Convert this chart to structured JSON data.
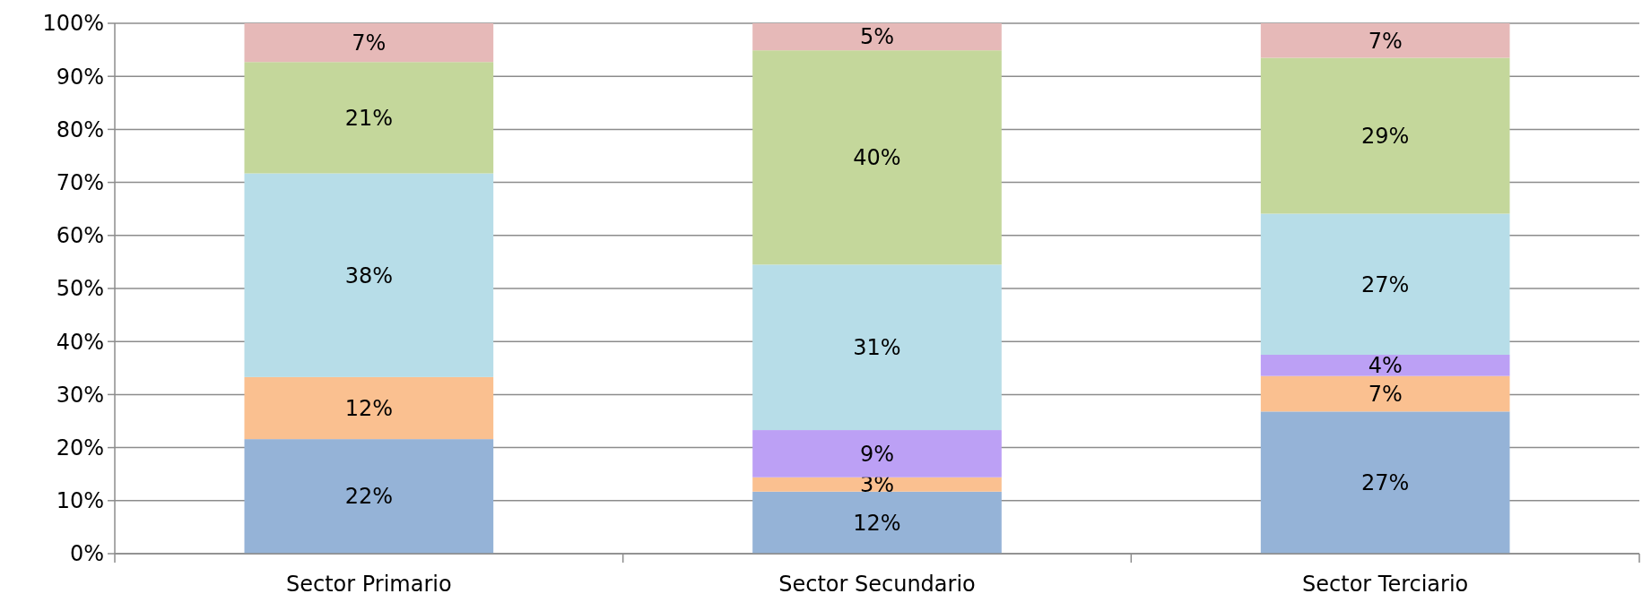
{
  "chart_data": {
    "type": "bar",
    "stacked": true,
    "categories": [
      "Sector Primario",
      "Sector Secundario",
      "Sector Terciario"
    ],
    "series": [
      {
        "color": "#95b3d7",
        "values": [
          21.6,
          11.7,
          26.8
        ],
        "value_labels": [
          "22%",
          "12%",
          "27%"
        ]
      },
      {
        "color": "#fac090",
        "values": [
          11.7,
          2.7,
          6.7
        ],
        "value_labels": [
          "12%",
          "3%",
          "7%"
        ]
      },
      {
        "color": "#bca0f5",
        "values": [
          null,
          8.9,
          4.0
        ],
        "value_labels": [
          null,
          "9%",
          "4%"
        ]
      },
      {
        "color": "#b7dde8",
        "values": [
          38.4,
          31.2,
          26.6
        ],
        "value_labels": [
          "38%",
          "31%",
          "27%"
        ]
      },
      {
        "color": "#c4d79b",
        "values": [
          21.0,
          40.4,
          29.4
        ],
        "value_labels": [
          "21%",
          "40%",
          "29%"
        ]
      },
      {
        "color": "#e6b9b8",
        "values": [
          7.3,
          5.1,
          6.5
        ],
        "value_labels": [
          "7%",
          "5%",
          "7%"
        ]
      }
    ],
    "ylim": [
      0,
      100
    ],
    "yticks": [
      {
        "value": 0,
        "label": "0%"
      },
      {
        "value": 10,
        "label": "10%"
      },
      {
        "value": 20,
        "label": "20%"
      },
      {
        "value": 30,
        "label": "30%"
      },
      {
        "value": 40,
        "label": "40%"
      },
      {
        "value": 50,
        "label": "50%"
      },
      {
        "value": 60,
        "label": "60%"
      },
      {
        "value": 70,
        "label": "70%"
      },
      {
        "value": 80,
        "label": "80%"
      },
      {
        "value": 90,
        "label": "90%"
      },
      {
        "value": 100,
        "label": "100%"
      }
    ],
    "grid": "y"
  }
}
